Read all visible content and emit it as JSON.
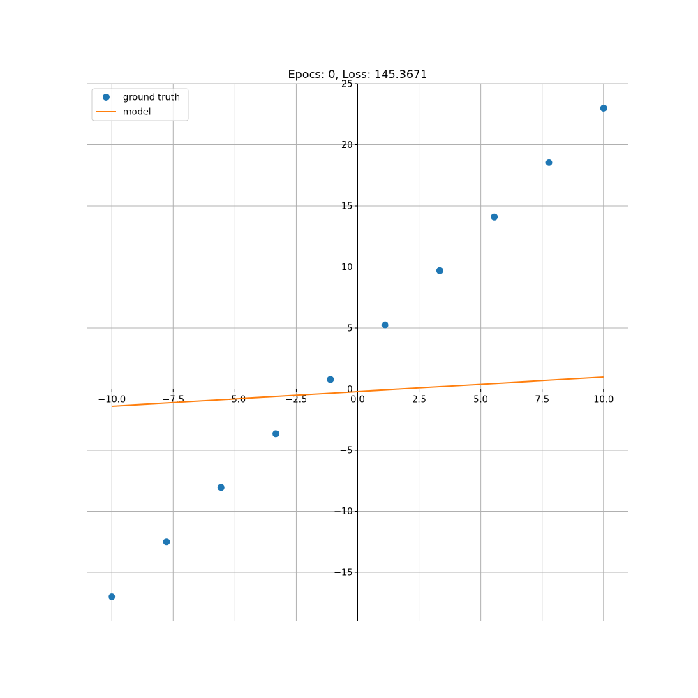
{
  "chart_data": {
    "type": "scatter",
    "title": "Epocs: 0, Loss: 145.3671",
    "xlabel": "",
    "ylabel": "",
    "xlim": [
      -11,
      11
    ],
    "ylim": [
      -19,
      25
    ],
    "xticks": [
      -10.0,
      -7.5,
      -5.0,
      -2.5,
      0.0,
      2.5,
      5.0,
      7.5,
      10.0
    ],
    "xtick_labels": [
      "−10.0",
      "−7.5",
      "−5.0",
      "−2.5",
      "0.0",
      "2.5",
      "5.0",
      "7.5",
      "10.0"
    ],
    "yticks": [
      -15,
      -10,
      -5,
      0,
      5,
      10,
      15,
      20,
      25
    ],
    "ytick_labels": [
      "−15",
      "−10",
      "−5",
      "0",
      "5",
      "10",
      "15",
      "20",
      "25"
    ],
    "grid": true,
    "legend_position": "upper-left",
    "series": [
      {
        "name": "ground truth",
        "type": "scatter",
        "color": "#1f77b4",
        "x": [
          -10.0,
          -7.778,
          -5.556,
          -3.333,
          -1.111,
          1.111,
          3.333,
          5.556,
          7.778,
          10.0
        ],
        "y": [
          -17.0,
          -12.5,
          -8.05,
          -3.65,
          0.8,
          5.25,
          9.7,
          14.1,
          18.55,
          23.0
        ]
      },
      {
        "name": "model",
        "type": "line",
        "color": "#ff7f0e",
        "x": [
          -10.0,
          10.0
        ],
        "y": [
          -1.4,
          1.0
        ]
      }
    ]
  }
}
